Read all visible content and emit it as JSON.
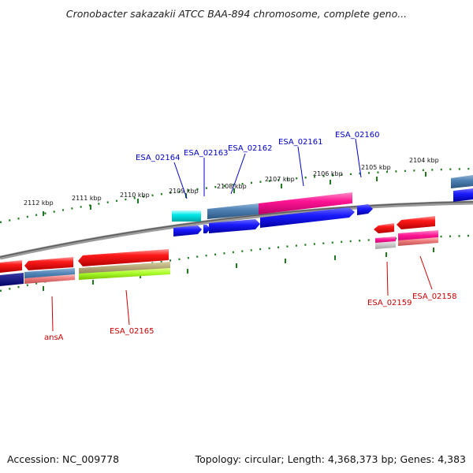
{
  "title": "Cronobacter sakazakii ATCC BAA-894 chromosome, complete geno...",
  "footer": {
    "accession": "Accession: NC_009778",
    "summary": "Topology: circular; Length: 4,368,373 bp; Genes: 4,383"
  },
  "colors": {
    "backbone": "#8a8a8a",
    "tick": "#1f7a1f",
    "top_label": "#0000cc",
    "bottom_label": "#cc0000"
  },
  "tick_labels": [
    "2112 kbp",
    "2111 kbp",
    "2110 kbp",
    "2109 kbp",
    "2108 kbp",
    "2107 kbp",
    "2106 kbp",
    "2105 kbp",
    "2104 kbp"
  ],
  "gene_labels_top": [
    "ESA_02164",
    "ESA_02163",
    "ESA_02162",
    "ESA_02161",
    "ESA_02160"
  ],
  "gene_labels_bottom": [
    "ansA",
    "ESA_02165",
    "ESA_02159",
    "ESA_02158"
  ]
}
